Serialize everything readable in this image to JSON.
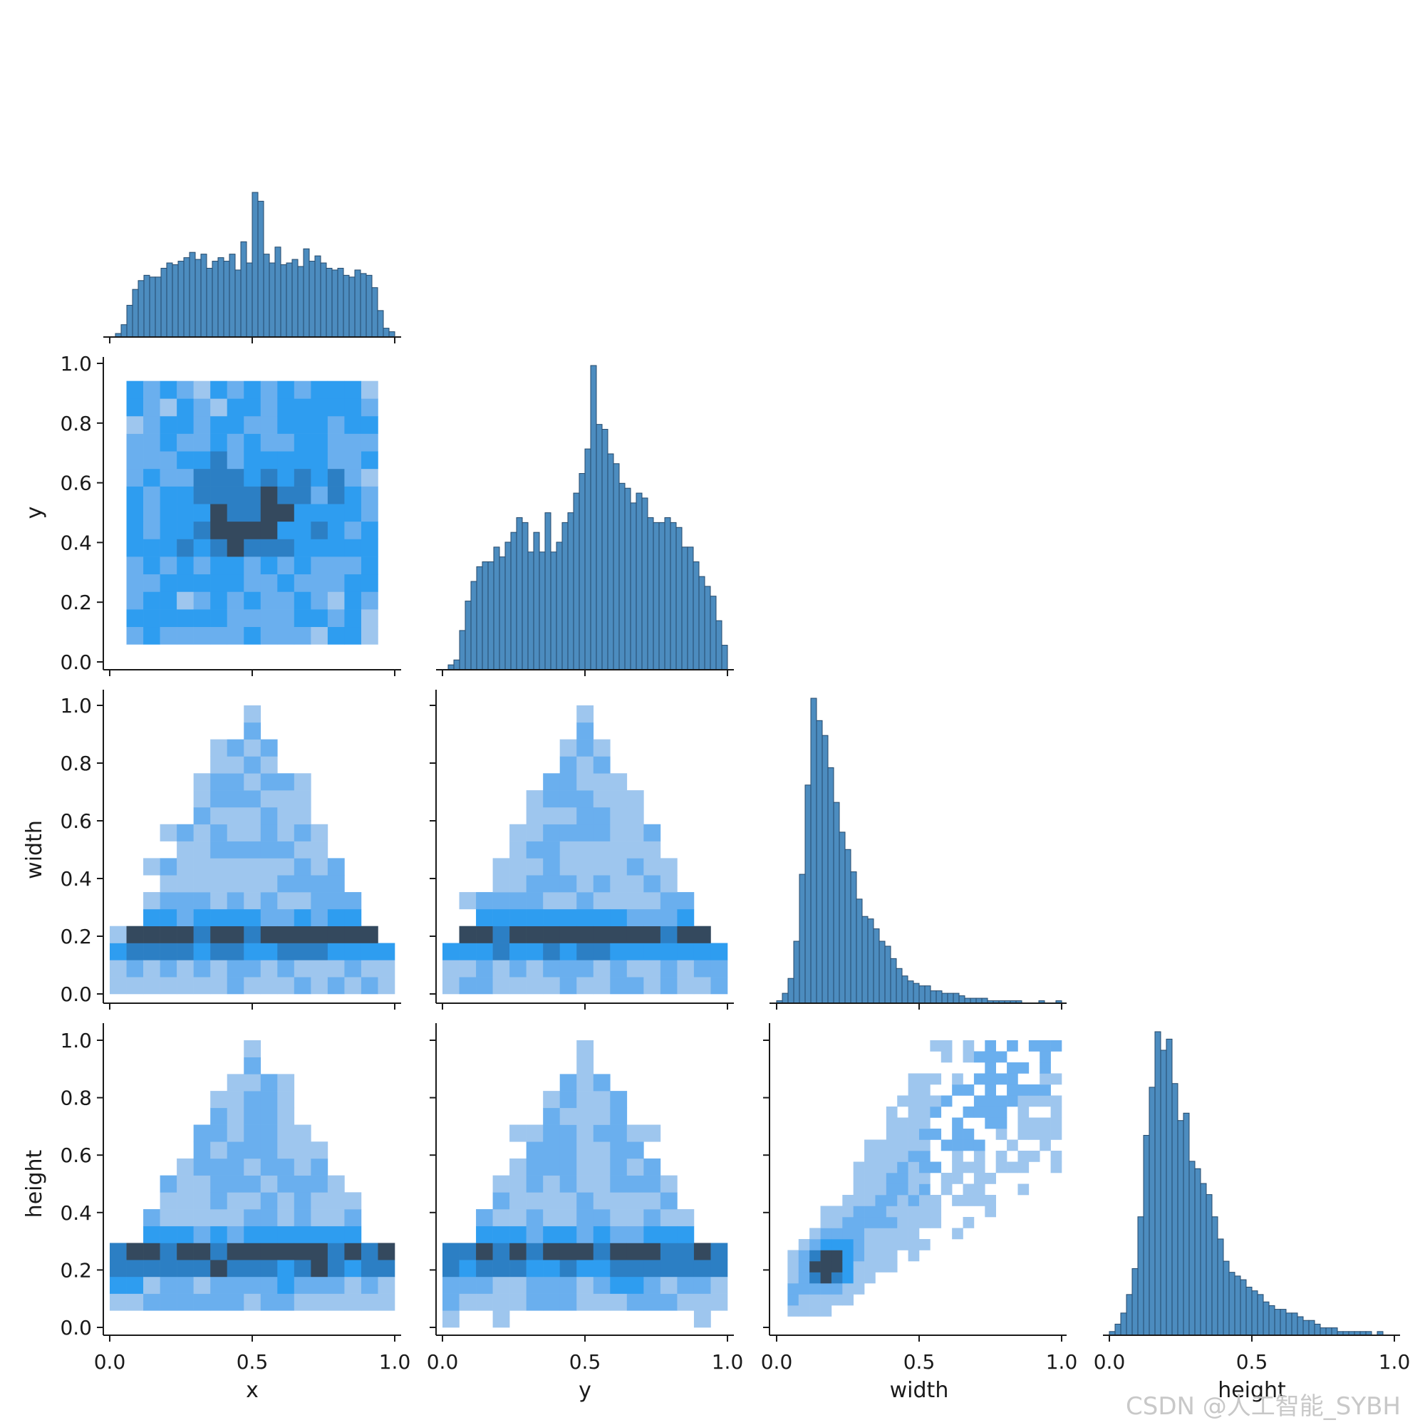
{
  "chart_data": {
    "type": "heatmap",
    "title": "",
    "variables": [
      "x",
      "y",
      "width",
      "height"
    ],
    "ticks": {
      "x": [
        "0.0",
        "0.5",
        "1.0"
      ],
      "y": [
        "0.0",
        "0.5",
        "1.0"
      ],
      "width": [
        "0.0",
        "0.5",
        "1.0"
      ],
      "height": [
        "0.0",
        "0.5",
        "1.0"
      ],
      "y_axis": [
        "0.0",
        "0.2",
        "0.4",
        "0.6",
        "0.8",
        "1.0"
      ]
    },
    "diagonal_histograms": {
      "x": {
        "range": [
          0.0,
          1.0
        ],
        "bins": 50,
        "counts": [
          0,
          2,
          7,
          18,
          27,
          32,
          35,
          34,
          34,
          39,
          42,
          41,
          43,
          45,
          48,
          44,
          47,
          39,
          43,
          45,
          43,
          47,
          38,
          54,
          42,
          82,
          77,
          47,
          42,
          51,
          41,
          42,
          44,
          40,
          50,
          43,
          46,
          42,
          39,
          38,
          39,
          35,
          34,
          38,
          36,
          35,
          28,
          15,
          5,
          3
        ]
      },
      "y": {
        "range": [
          0.0,
          1.0
        ],
        "bins": 50,
        "counts": [
          0,
          1,
          2,
          8,
          14,
          18,
          21,
          22,
          22,
          25,
          23,
          26,
          28,
          31,
          30,
          24,
          28,
          24,
          32,
          24,
          26,
          30,
          32,
          36,
          40,
          45,
          62,
          50,
          49,
          44,
          42,
          38,
          37,
          34,
          36,
          35,
          31,
          30,
          30,
          31,
          30,
          29,
          25,
          25,
          22,
          19,
          17,
          15,
          10,
          5
        ]
      },
      "width": {
        "range": [
          0.0,
          1.0
        ],
        "bins": 50,
        "counts": [
          1,
          4,
          10,
          25,
          52,
          88,
          123,
          114,
          108,
          95,
          81,
          69,
          62,
          53,
          42,
          35,
          34,
          30,
          25,
          23,
          18,
          14,
          11,
          9,
          8,
          7,
          7,
          5,
          5,
          4,
          4,
          4,
          3,
          2,
          2,
          2,
          2,
          1,
          1,
          1,
          1,
          1,
          1,
          0,
          0,
          0,
          1,
          0,
          0,
          1
        ]
      },
      "height": {
        "range": [
          0.0,
          1.0
        ],
        "bins": 50,
        "counts": [
          1,
          3,
          6,
          11,
          18,
          32,
          54,
          67,
          82,
          77,
          80,
          68,
          58,
          60,
          47,
          45,
          41,
          38,
          32,
          26,
          20,
          17,
          16,
          15,
          13,
          12,
          11,
          9,
          8,
          7,
          7,
          6,
          6,
          5,
          4,
          4,
          3,
          2,
          2,
          2,
          1,
          1,
          1,
          1,
          1,
          1,
          0,
          1,
          0,
          0
        ]
      }
    },
    "offdiagonal_2d_histograms": [
      {
        "x_var": "x",
        "y_var": "y",
        "pattern": "uniform square, densest near x=0.5, y=0.5"
      },
      {
        "x_var": "x",
        "y_var": "width",
        "pattern": "triangle peaked at x=0.5, dense band at width 0.15-0.25"
      },
      {
        "x_var": "y",
        "y_var": "width",
        "pattern": "triangle peaked at y=0.5, dense band at width 0.15-0.25"
      },
      {
        "x_var": "x",
        "y_var": "height",
        "pattern": "triangle peaked at x=0.5, dense band at height 0.2-0.3"
      },
      {
        "x_var": "y",
        "y_var": "height",
        "pattern": "triangle peaked at y=0.5, dense band at height 0.2-0.3"
      },
      {
        "x_var": "width",
        "y_var": "height",
        "pattern": "positive correlation, densest near width=height=0.2"
      }
    ],
    "colors": {
      "hist_fill": "#4c8cbf",
      "hist_edge": "#24496b",
      "heat_low": "#9ec6ee",
      "heat_mid": "#2e9df0",
      "heat_high": "#34495e"
    },
    "grid": false,
    "legend": "none"
  },
  "watermark": "CSDN @人工智能_SYBH"
}
